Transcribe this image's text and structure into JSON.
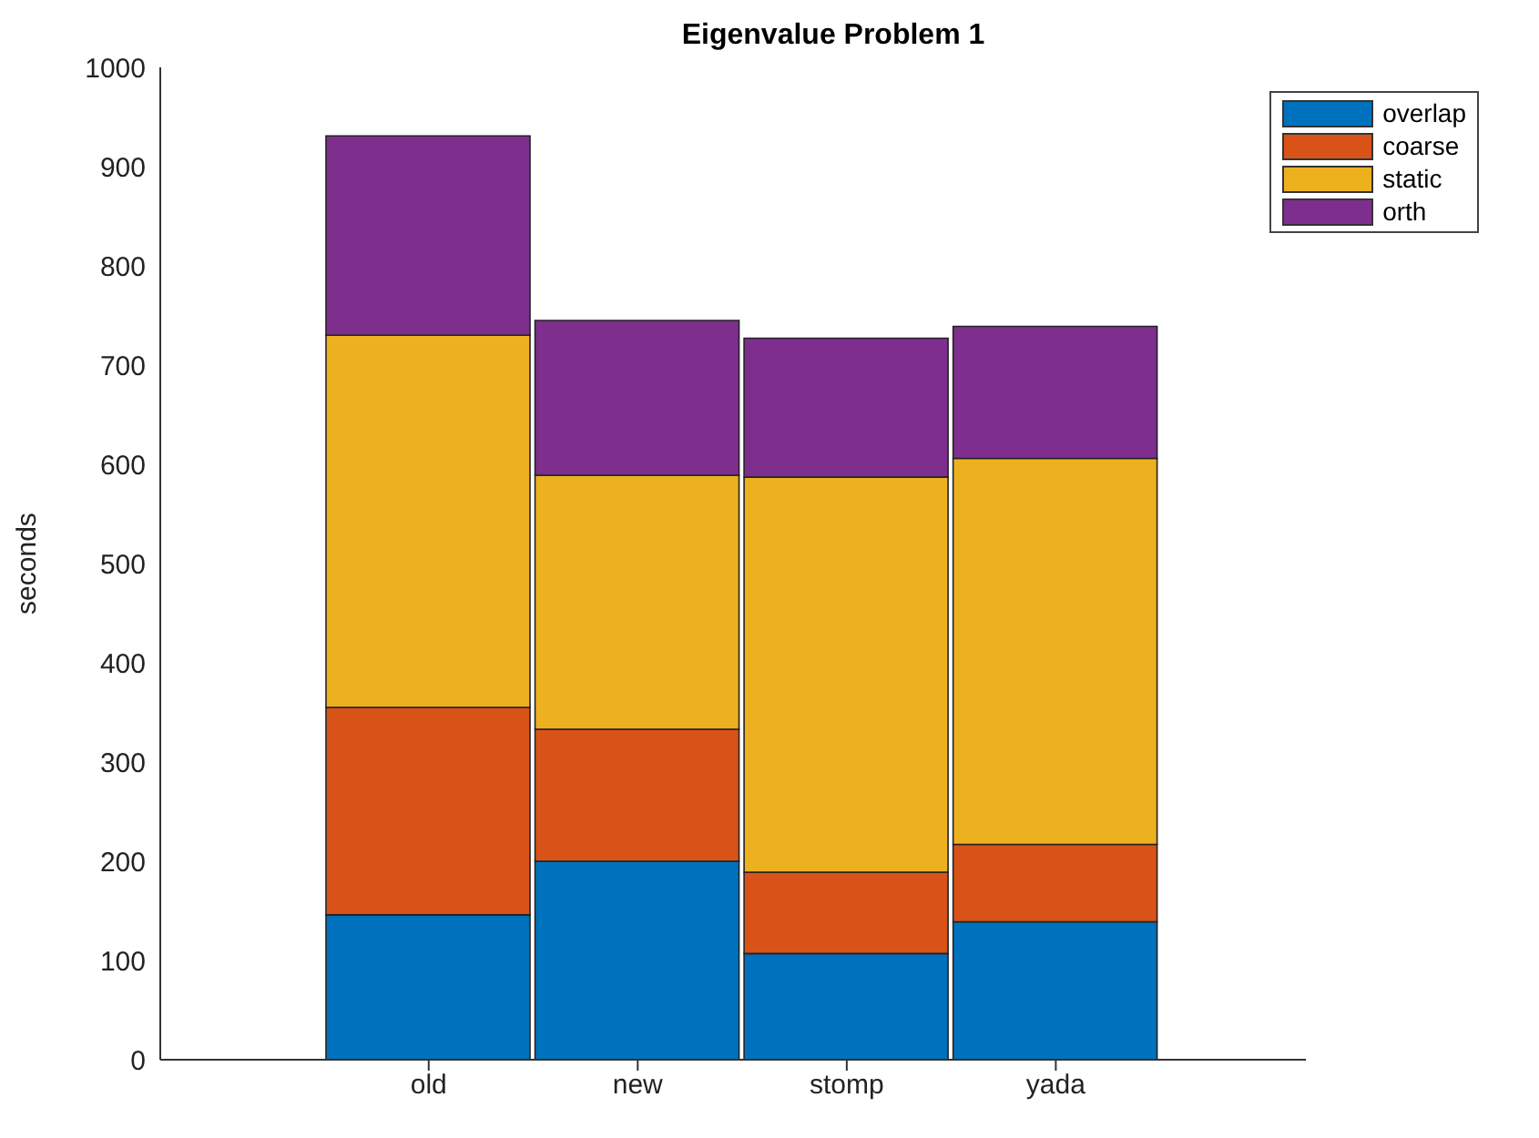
{
  "chart_data": {
    "type": "bar",
    "title": "Eigenvalue Problem 1",
    "ylabel": "seconds",
    "categories": [
      "old",
      "new",
      "stomp",
      "yada"
    ],
    "stacked": true,
    "series": [
      {
        "name": "overlap",
        "color": "#0072bd",
        "values": [
          146,
          200,
          107,
          139
        ]
      },
      {
        "name": "coarse",
        "color": "#d95319",
        "values": [
          209,
          133,
          82,
          78
        ]
      },
      {
        "name": "static",
        "color": "#edb120",
        "values": [
          375,
          256,
          398,
          389
        ]
      },
      {
        "name": "orth",
        "color": "#7e2f8e",
        "values": [
          201,
          156,
          140,
          133
        ]
      }
    ],
    "ylim": [
      0,
      1000
    ],
    "yticks": [
      0,
      100,
      200,
      300,
      400,
      500,
      600,
      700,
      800,
      900,
      1000
    ],
    "legend": "top right"
  }
}
